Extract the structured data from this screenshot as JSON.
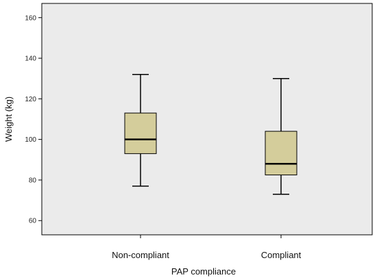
{
  "chart_data": {
    "type": "box",
    "xlabel": "PAP compliance",
    "ylabel": "Weight (kg)",
    "ylim": [
      53,
      167
    ],
    "yticks": [
      60,
      80,
      100,
      120,
      140,
      160
    ],
    "grid": false,
    "categories": [
      "Non-compliant",
      "Compliant"
    ],
    "boxes": [
      {
        "category": "Non-compliant",
        "min": 77,
        "q1": 93,
        "median": 100,
        "q3": 113,
        "max": 132
      },
      {
        "category": "Compliant",
        "min": 73,
        "q1": 82.5,
        "median": 88,
        "q3": 104,
        "max": 130
      }
    ],
    "colors": {
      "plot_background": "#ebebeb",
      "box_fill": "#d4cd9b",
      "line": "#000000"
    }
  }
}
